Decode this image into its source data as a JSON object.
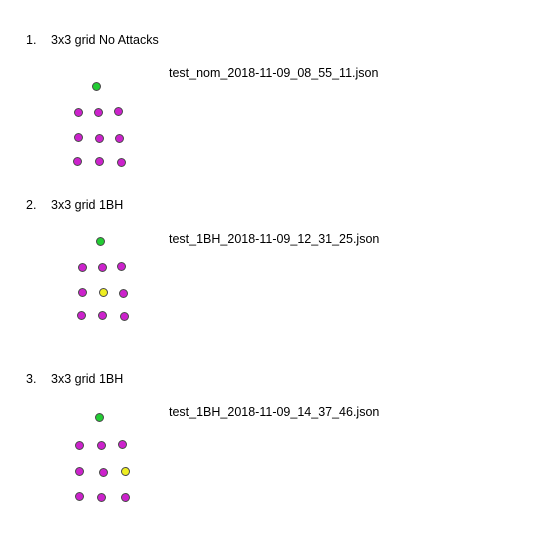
{
  "items": [
    {
      "number": "1.",
      "title": "3x3 grid No Attacks",
      "file": "test_nom_2018-11-09_08_55_11.json"
    },
    {
      "number": "2.",
      "title": "3x3 grid 1BH",
      "file": "test_1BH_2018-11-09_12_31_25.json"
    },
    {
      "number": "3.",
      "title": "3x3 grid 1BH",
      "file": "test_1BH_2018-11-09_14_37_46.json"
    }
  ],
  "colors": {
    "sink": "#22cc33",
    "normal": "#cc22cc",
    "attacker": "#eeee22"
  }
}
